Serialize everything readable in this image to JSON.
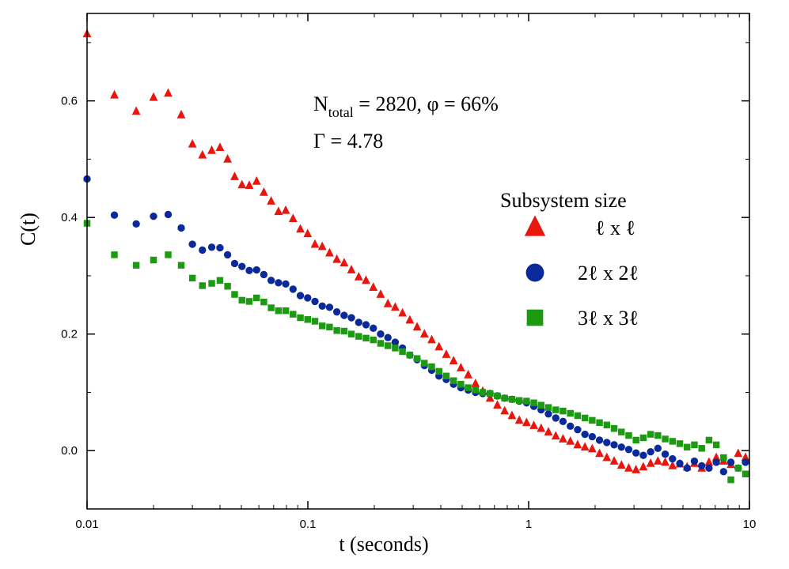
{
  "chart_data": {
    "type": "scatter",
    "xscale": "log",
    "xlim": [
      0.01,
      10
    ],
    "ylim": [
      -0.1,
      0.75
    ],
    "xlabel": "t (seconds)",
    "ylabel": "C(t)",
    "x_ticks": [
      {
        "value": 0.01,
        "label": "0.01"
      },
      {
        "value": 0.1,
        "label": "0.1"
      },
      {
        "value": 1,
        "label": "1"
      },
      {
        "value": 10,
        "label": "10"
      }
    ],
    "y_ticks": [
      {
        "value": 0.0,
        "label": "0.0"
      },
      {
        "value": 0.2,
        "label": "0.2"
      },
      {
        "value": 0.4,
        "label": "0.4"
      },
      {
        "value": 0.6,
        "label": "0.6"
      }
    ],
    "annotation": {
      "line1_n": "N",
      "line1_sub": "total",
      "line1_rest": " = 2820, φ = 66%",
      "line2": "Γ = 4.78"
    },
    "legend": {
      "title": "Subsystem size",
      "position": "right",
      "entries": [
        {
          "label": "ℓ x ℓ",
          "marker": "triangle",
          "color": "#e8160c"
        },
        {
          "label": "2ℓ x 2ℓ",
          "marker": "circle",
          "color": "#0a2a9c"
        },
        {
          "label": "3ℓ x 3ℓ",
          "marker": "square",
          "color": "#1c9a12"
        }
      ]
    },
    "series": [
      {
        "name": "ℓ x ℓ",
        "marker": "triangle",
        "color": "#e8160c",
        "points": [
          [
            0.01,
            0.715
          ],
          [
            0.0133,
            0.61
          ],
          [
            0.0167,
            0.582
          ],
          [
            0.02,
            0.606
          ],
          [
            0.0233,
            0.613
          ],
          [
            0.0267,
            0.576
          ],
          [
            0.03,
            0.526
          ],
          [
            0.0333,
            0.507
          ],
          [
            0.0367,
            0.515
          ],
          [
            0.04,
            0.52
          ],
          [
            0.0433,
            0.5
          ],
          [
            0.0466,
            0.47
          ],
          [
            0.0503,
            0.456
          ],
          [
            0.0543,
            0.455
          ],
          [
            0.0586,
            0.462
          ],
          [
            0.0632,
            0.443
          ],
          [
            0.0682,
            0.428
          ],
          [
            0.0736,
            0.41
          ],
          [
            0.0794,
            0.412
          ],
          [
            0.0857,
            0.398
          ],
          [
            0.0925,
            0.38
          ],
          [
            0.0998,
            0.372
          ],
          [
            0.1077,
            0.354
          ],
          [
            0.1162,
            0.35
          ],
          [
            0.1254,
            0.339
          ],
          [
            0.1353,
            0.328
          ],
          [
            0.146,
            0.322
          ],
          [
            0.1575,
            0.31
          ],
          [
            0.17,
            0.298
          ],
          [
            0.1834,
            0.292
          ],
          [
            0.1979,
            0.28
          ],
          [
            0.2136,
            0.268
          ],
          [
            0.2305,
            0.252
          ],
          [
            0.2487,
            0.246
          ],
          [
            0.2683,
            0.236
          ],
          [
            0.2896,
            0.224
          ],
          [
            0.3125,
            0.212
          ],
          [
            0.3372,
            0.2
          ],
          [
            0.3638,
            0.19
          ],
          [
            0.3926,
            0.178
          ],
          [
            0.4236,
            0.165
          ],
          [
            0.4571,
            0.154
          ],
          [
            0.4933,
            0.142
          ],
          [
            0.5323,
            0.13
          ],
          [
            0.5744,
            0.115
          ],
          [
            0.6198,
            0.102
          ],
          [
            0.6688,
            0.09
          ],
          [
            0.7217,
            0.078
          ],
          [
            0.7787,
            0.068
          ],
          [
            0.8403,
            0.06
          ],
          [
            0.9068,
            0.052
          ],
          [
            0.9785,
            0.048
          ],
          [
            1.056,
            0.043
          ],
          [
            1.139,
            0.038
          ],
          [
            1.229,
            0.032
          ],
          [
            1.327,
            0.025
          ],
          [
            1.431,
            0.02
          ],
          [
            1.545,
            0.016
          ],
          [
            1.667,
            0.01
          ],
          [
            1.799,
            0.006
          ],
          [
            1.941,
            0.003
          ],
          [
            2.094,
            -0.005
          ],
          [
            2.26,
            -0.012
          ],
          [
            2.439,
            -0.018
          ],
          [
            2.632,
            -0.025
          ],
          [
            2.84,
            -0.03
          ],
          [
            3.064,
            -0.033
          ],
          [
            3.307,
            -0.028
          ],
          [
            3.568,
            -0.022
          ],
          [
            3.85,
            -0.018
          ],
          [
            4.155,
            -0.02
          ],
          [
            4.484,
            -0.026
          ],
          [
            4.838,
            -0.023
          ],
          [
            5.221,
            -0.028
          ],
          [
            5.633,
            -0.022
          ],
          [
            6.079,
            -0.03
          ],
          [
            6.559,
            -0.02
          ],
          [
            7.078,
            -0.012
          ],
          [
            7.638,
            -0.018
          ],
          [
            8.241,
            -0.024
          ],
          [
            8.893,
            -0.005
          ],
          [
            9.596,
            -0.012
          ]
        ]
      },
      {
        "name": "2ℓ x 2ℓ",
        "marker": "circle",
        "color": "#0a2a9c",
        "points": [
          [
            0.01,
            0.466
          ],
          [
            0.0133,
            0.404
          ],
          [
            0.0167,
            0.389
          ],
          [
            0.02,
            0.402
          ],
          [
            0.0233,
            0.405
          ],
          [
            0.0267,
            0.382
          ],
          [
            0.03,
            0.354
          ],
          [
            0.0333,
            0.344
          ],
          [
            0.0367,
            0.349
          ],
          [
            0.04,
            0.348
          ],
          [
            0.0433,
            0.336
          ],
          [
            0.0466,
            0.321
          ],
          [
            0.0503,
            0.316
          ],
          [
            0.0543,
            0.309
          ],
          [
            0.0586,
            0.31
          ],
          [
            0.0632,
            0.302
          ],
          [
            0.0682,
            0.292
          ],
          [
            0.0736,
            0.288
          ],
          [
            0.0794,
            0.286
          ],
          [
            0.0857,
            0.277
          ],
          [
            0.0925,
            0.266
          ],
          [
            0.0998,
            0.262
          ],
          [
            0.1077,
            0.256
          ],
          [
            0.1162,
            0.248
          ],
          [
            0.1254,
            0.246
          ],
          [
            0.1353,
            0.238
          ],
          [
            0.146,
            0.232
          ],
          [
            0.1575,
            0.228
          ],
          [
            0.17,
            0.22
          ],
          [
            0.1834,
            0.216
          ],
          [
            0.1979,
            0.21
          ],
          [
            0.2136,
            0.2
          ],
          [
            0.2305,
            0.194
          ],
          [
            0.2487,
            0.186
          ],
          [
            0.2683,
            0.176
          ],
          [
            0.2896,
            0.164
          ],
          [
            0.3125,
            0.156
          ],
          [
            0.3372,
            0.146
          ],
          [
            0.3638,
            0.138
          ],
          [
            0.3926,
            0.128
          ],
          [
            0.4236,
            0.122
          ],
          [
            0.4571,
            0.114
          ],
          [
            0.4933,
            0.108
          ],
          [
            0.5323,
            0.104
          ],
          [
            0.5744,
            0.1
          ],
          [
            0.6198,
            0.098
          ],
          [
            0.6688,
            0.098
          ],
          [
            0.7217,
            0.094
          ],
          [
            0.7787,
            0.09
          ],
          [
            0.8403,
            0.088
          ],
          [
            0.9068,
            0.085
          ],
          [
            0.9785,
            0.082
          ],
          [
            1.056,
            0.076
          ],
          [
            1.139,
            0.07
          ],
          [
            1.229,
            0.063
          ],
          [
            1.327,
            0.056
          ],
          [
            1.431,
            0.05
          ],
          [
            1.545,
            0.042
          ],
          [
            1.667,
            0.036
          ],
          [
            1.799,
            0.028
          ],
          [
            1.941,
            0.024
          ],
          [
            2.094,
            0.018
          ],
          [
            2.26,
            0.014
          ],
          [
            2.439,
            0.01
          ],
          [
            2.632,
            0.006
          ],
          [
            2.84,
            0.002
          ],
          [
            3.064,
            -0.004
          ],
          [
            3.307,
            -0.008
          ],
          [
            3.568,
            -0.002
          ],
          [
            3.85,
            0.004
          ],
          [
            4.155,
            -0.006
          ],
          [
            4.484,
            -0.014
          ],
          [
            4.838,
            -0.022
          ],
          [
            5.221,
            -0.03
          ],
          [
            5.633,
            -0.018
          ],
          [
            6.079,
            -0.026
          ],
          [
            6.559,
            -0.03
          ],
          [
            7.078,
            -0.02
          ],
          [
            7.638,
            -0.036
          ],
          [
            8.241,
            -0.02
          ],
          [
            8.893,
            -0.03
          ],
          [
            9.596,
            -0.02
          ]
        ]
      },
      {
        "name": "3ℓ x 3ℓ",
        "marker": "square",
        "color": "#1c9a12",
        "points": [
          [
            0.01,
            0.39
          ],
          [
            0.0133,
            0.336
          ],
          [
            0.0167,
            0.318
          ],
          [
            0.02,
            0.327
          ],
          [
            0.0233,
            0.336
          ],
          [
            0.0267,
            0.318
          ],
          [
            0.03,
            0.296
          ],
          [
            0.0333,
            0.283
          ],
          [
            0.0367,
            0.287
          ],
          [
            0.04,
            0.292
          ],
          [
            0.0433,
            0.282
          ],
          [
            0.0466,
            0.268
          ],
          [
            0.0503,
            0.258
          ],
          [
            0.0543,
            0.256
          ],
          [
            0.0586,
            0.262
          ],
          [
            0.0632,
            0.255
          ],
          [
            0.0682,
            0.245
          ],
          [
            0.0736,
            0.24
          ],
          [
            0.0794,
            0.24
          ],
          [
            0.0857,
            0.234
          ],
          [
            0.0925,
            0.228
          ],
          [
            0.0998,
            0.225
          ],
          [
            0.1077,
            0.222
          ],
          [
            0.1162,
            0.214
          ],
          [
            0.1254,
            0.212
          ],
          [
            0.1353,
            0.206
          ],
          [
            0.146,
            0.205
          ],
          [
            0.1575,
            0.2
          ],
          [
            0.17,
            0.196
          ],
          [
            0.1834,
            0.193
          ],
          [
            0.1979,
            0.19
          ],
          [
            0.2136,
            0.184
          ],
          [
            0.2305,
            0.18
          ],
          [
            0.2487,
            0.176
          ],
          [
            0.2683,
            0.17
          ],
          [
            0.2896,
            0.164
          ],
          [
            0.3125,
            0.158
          ],
          [
            0.3372,
            0.15
          ],
          [
            0.3638,
            0.144
          ],
          [
            0.3926,
            0.136
          ],
          [
            0.4236,
            0.128
          ],
          [
            0.4571,
            0.12
          ],
          [
            0.4933,
            0.114
          ],
          [
            0.5323,
            0.108
          ],
          [
            0.5744,
            0.104
          ],
          [
            0.6198,
            0.1
          ],
          [
            0.6688,
            0.098
          ],
          [
            0.7217,
            0.094
          ],
          [
            0.7787,
            0.09
          ],
          [
            0.8403,
            0.088
          ],
          [
            0.9068,
            0.086
          ],
          [
            0.9785,
            0.085
          ],
          [
            1.056,
            0.082
          ],
          [
            1.139,
            0.078
          ],
          [
            1.229,
            0.074
          ],
          [
            1.327,
            0.07
          ],
          [
            1.431,
            0.068
          ],
          [
            1.545,
            0.064
          ],
          [
            1.667,
            0.06
          ],
          [
            1.799,
            0.056
          ],
          [
            1.941,
            0.052
          ],
          [
            2.094,
            0.048
          ],
          [
            2.26,
            0.044
          ],
          [
            2.439,
            0.038
          ],
          [
            2.632,
            0.032
          ],
          [
            2.84,
            0.026
          ],
          [
            3.064,
            0.018
          ],
          [
            3.307,
            0.022
          ],
          [
            3.568,
            0.028
          ],
          [
            3.85,
            0.026
          ],
          [
            4.155,
            0.02
          ],
          [
            4.484,
            0.016
          ],
          [
            4.838,
            0.012
          ],
          [
            5.221,
            0.006
          ],
          [
            5.633,
            0.01
          ],
          [
            6.079,
            0.004
          ],
          [
            6.559,
            0.018
          ],
          [
            7.078,
            0.01
          ],
          [
            7.638,
            -0.012
          ],
          [
            8.241,
            -0.05
          ],
          [
            8.893,
            -0.03
          ],
          [
            9.596,
            -0.04
          ]
        ]
      }
    ]
  }
}
